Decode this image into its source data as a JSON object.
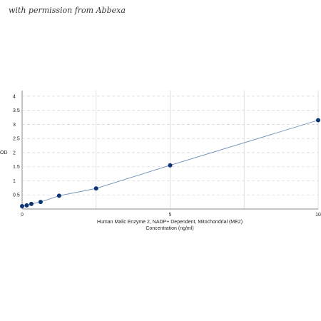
{
  "watermark": "with permission from Abbexa",
  "chart_data": {
    "type": "scatter",
    "title": "",
    "xlabel_line1": "Human Malic Enzyme 2, NADP+ Dependent, Mitochondrial (ME2)",
    "xlabel_line2": "Concentration (ng/ml)",
    "ylabel": "OD",
    "xlim": [
      0,
      10
    ],
    "ylim": [
      0,
      4.2
    ],
    "xticks": [
      0,
      5,
      10
    ],
    "yticks": [
      0.5,
      1,
      1.5,
      2,
      2.5,
      3,
      3.5,
      4
    ],
    "ytick_labels": [
      "0.5",
      "1",
      "1.5",
      "2",
      "2.5",
      "3",
      "3.5",
      "4"
    ],
    "xtick_labels": [
      "0",
      "5",
      "10"
    ],
    "grid": true,
    "x": [
      0,
      0.156,
      0.312,
      0.625,
      1.25,
      2.5,
      5,
      10
    ],
    "y": [
      0.1,
      0.13,
      0.18,
      0.25,
      0.47,
      0.73,
      1.55,
      3.15
    ],
    "point_color": "#0d3573",
    "line_color": "#6e8fb8",
    "grid_color": "#d9d9d9"
  }
}
